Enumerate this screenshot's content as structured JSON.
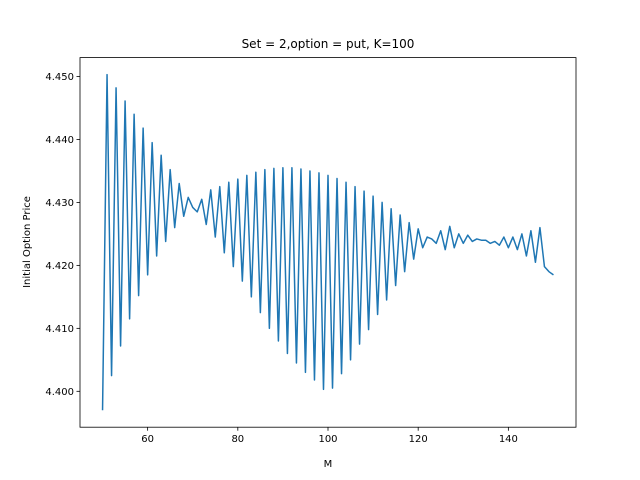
{
  "chart_data": {
    "type": "line",
    "title": "Set = 2,option = put, K=100",
    "x_label": "M",
    "y_label": "Initial Option Price",
    "color": "#1f77b4",
    "grid": false,
    "x": [
      50,
      51,
      52,
      53,
      54,
      55,
      56,
      57,
      58,
      59,
      60,
      61,
      62,
      63,
      64,
      65,
      66,
      67,
      68,
      69,
      70,
      71,
      72,
      73,
      74,
      75,
      76,
      77,
      78,
      79,
      80,
      81,
      82,
      83,
      84,
      85,
      86,
      87,
      88,
      89,
      90,
      91,
      92,
      93,
      94,
      95,
      96,
      97,
      98,
      99,
      100,
      101,
      102,
      103,
      104,
      105,
      106,
      107,
      108,
      109,
      110,
      111,
      112,
      113,
      114,
      115,
      116,
      117,
      118,
      119,
      120,
      121,
      122,
      123,
      124,
      125,
      126,
      127,
      128,
      129,
      130,
      131,
      132,
      133,
      134,
      135,
      136,
      137,
      138,
      139,
      140,
      141,
      142,
      143,
      144,
      145,
      146,
      147,
      148,
      149,
      150
    ],
    "values": [
      4.397,
      4.4503,
      4.4025,
      4.4482,
      4.4072,
      4.4461,
      4.4115,
      4.444,
      4.4152,
      4.4418,
      4.4185,
      4.4395,
      4.4215,
      4.4375,
      4.4238,
      4.4352,
      4.426,
      4.433,
      4.4278,
      4.4308,
      4.4292,
      4.4285,
      4.4305,
      4.4265,
      4.432,
      4.4245,
      4.4325,
      4.422,
      4.4332,
      4.4198,
      4.4337,
      4.4175,
      4.4343,
      4.415,
      4.4348,
      4.4125,
      4.4352,
      4.41,
      4.4354,
      4.408,
      4.4355,
      4.406,
      4.4355,
      4.4045,
      4.4353,
      4.403,
      4.435,
      4.4018,
      4.4347,
      4.4003,
      4.4343,
      4.4005,
      4.4338,
      4.4028,
      4.4332,
      4.405,
      4.4325,
      4.4075,
      4.4318,
      4.4098,
      4.431,
      4.4122,
      4.43,
      4.4145,
      4.429,
      4.4168,
      4.428,
      4.419,
      4.4268,
      4.421,
      4.4258,
      4.4228,
      4.4245,
      4.4242,
      4.4235,
      4.4255,
      4.4225,
      4.4262,
      4.4228,
      4.425,
      4.4235,
      4.4248,
      4.4238,
      4.4242,
      4.424,
      4.424,
      4.4235,
      4.4238,
      4.4232,
      4.4245,
      4.4228,
      4.4245,
      4.4225,
      4.425,
      4.4215,
      4.4255,
      4.4205,
      4.426,
      4.4198,
      4.419,
      4.4185
    ],
    "xlim": [
      45,
      155
    ],
    "xticks": [
      60,
      80,
      100,
      120,
      140
    ],
    "ylim": [
      4.3943,
      4.453
    ],
    "yticks": [
      {
        "value": 4.4,
        "label": "4.400"
      },
      {
        "value": 4.41,
        "label": "4.410"
      },
      {
        "value": 4.42,
        "label": "4.420"
      },
      {
        "value": 4.43,
        "label": "4.430"
      },
      {
        "value": 4.44,
        "label": "4.440"
      },
      {
        "value": 4.45,
        "label": "4.450"
      }
    ]
  }
}
